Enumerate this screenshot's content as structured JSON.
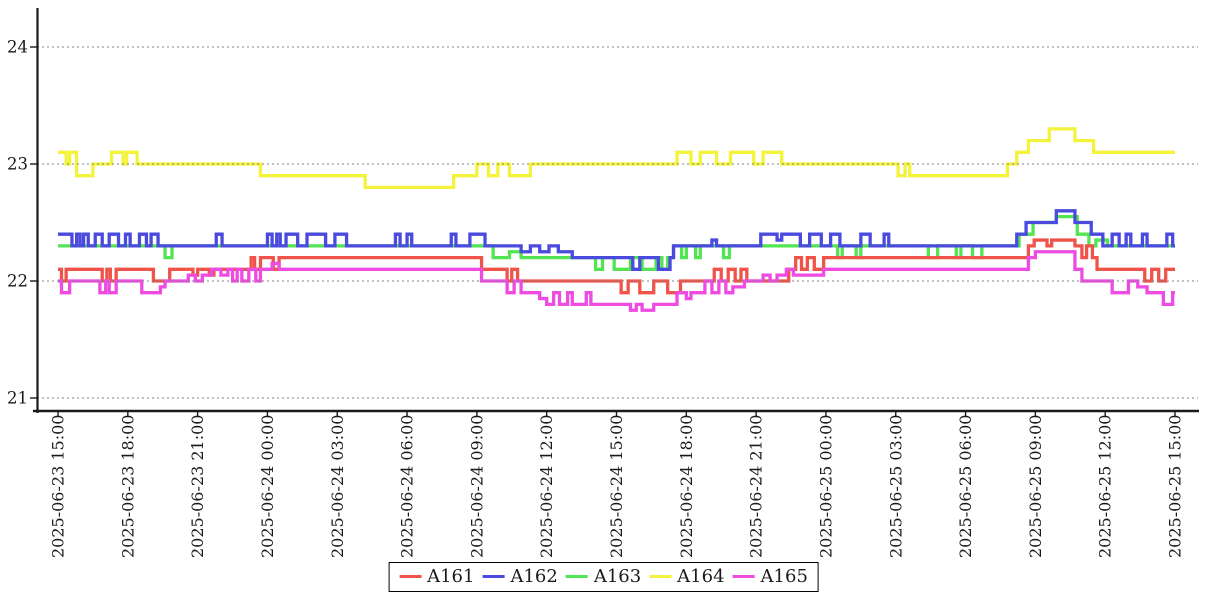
{
  "chart_data": {
    "type": "line",
    "title": "",
    "xlabel": "",
    "ylabel": "",
    "line_style": "step-after",
    "grid": "horizontal dotted",
    "legend_position": "bottom-center",
    "y_ticks": [
      21,
      22,
      23,
      24
    ],
    "ylim": [
      20.9,
      24.35
    ],
    "x_unit": "hours since 2025-06-23 15:00",
    "x_tick_interval_hours": 3,
    "x_range_hours": [
      0,
      48
    ],
    "x_ticks": [
      "2025-06-23 15:00",
      "2025-06-23 18:00",
      "2025-06-23 21:00",
      "2025-06-24 00:00",
      "2025-06-24 03:00",
      "2025-06-24 06:00",
      "2025-06-24 09:00",
      "2025-06-24 12:00",
      "2025-06-24 15:00",
      "2025-06-24 18:00",
      "2025-06-24 21:00",
      "2025-06-25 00:00",
      "2025-06-25 03:00",
      "2025-06-25 06:00",
      "2025-06-25 09:00",
      "2025-06-25 12:00",
      "2025-06-25 15:00"
    ],
    "draw_order": [
      "A164",
      "A163",
      "A161",
      "A162",
      "A165"
    ],
    "series": [
      {
        "name": "A161",
        "color": "#f0534a",
        "points": [
          [
            0,
            22.1
          ],
          [
            0.15,
            22.0
          ],
          [
            0.35,
            22.1
          ],
          [
            1.9,
            22.0
          ],
          [
            2.1,
            22.1
          ],
          [
            2.25,
            22.0
          ],
          [
            2.5,
            22.1
          ],
          [
            4.1,
            22.0
          ],
          [
            4.8,
            22.1
          ],
          [
            5.8,
            22.05
          ],
          [
            6.0,
            22.1
          ],
          [
            6.5,
            22.05
          ],
          [
            6.7,
            22.1
          ],
          [
            8.3,
            22.2
          ],
          [
            8.45,
            22.1
          ],
          [
            8.7,
            22.2
          ],
          [
            9.25,
            22.1
          ],
          [
            9.5,
            22.2
          ],
          [
            18.2,
            22.1
          ],
          [
            19.3,
            22.0
          ],
          [
            19.5,
            22.1
          ],
          [
            19.75,
            22.0
          ],
          [
            24.2,
            21.9
          ],
          [
            24.5,
            22.0
          ],
          [
            25.0,
            21.9
          ],
          [
            25.6,
            22.0
          ],
          [
            26.2,
            21.9
          ],
          [
            26.75,
            22.0
          ],
          [
            28.2,
            22.1
          ],
          [
            28.5,
            22.0
          ],
          [
            28.8,
            22.1
          ],
          [
            29.1,
            22.0
          ],
          [
            29.35,
            22.1
          ],
          [
            29.6,
            22.0
          ],
          [
            31.4,
            22.1
          ],
          [
            31.7,
            22.2
          ],
          [
            31.95,
            22.1
          ],
          [
            32.2,
            22.2
          ],
          [
            32.5,
            22.1
          ],
          [
            32.9,
            22.2
          ],
          [
            41.7,
            22.3
          ],
          [
            41.95,
            22.35
          ],
          [
            42.5,
            22.3
          ],
          [
            42.7,
            22.35
          ],
          [
            43.7,
            22.3
          ],
          [
            44.0,
            22.2
          ],
          [
            44.2,
            22.3
          ],
          [
            44.45,
            22.2
          ],
          [
            44.65,
            22.1
          ],
          [
            46.7,
            22.0
          ],
          [
            47.0,
            22.1
          ],
          [
            47.3,
            22.0
          ],
          [
            47.6,
            22.1
          ]
        ]
      },
      {
        "name": "A162",
        "color": "#4a4ade",
        "points": [
          [
            0,
            22.4
          ],
          [
            0.6,
            22.3
          ],
          [
            0.8,
            22.4
          ],
          [
            0.95,
            22.3
          ],
          [
            1.1,
            22.4
          ],
          [
            1.3,
            22.3
          ],
          [
            1.6,
            22.4
          ],
          [
            1.9,
            22.3
          ],
          [
            2.2,
            22.4
          ],
          [
            2.6,
            22.3
          ],
          [
            2.9,
            22.4
          ],
          [
            3.1,
            22.3
          ],
          [
            3.5,
            22.4
          ],
          [
            3.8,
            22.3
          ],
          [
            4.0,
            22.4
          ],
          [
            4.3,
            22.3
          ],
          [
            6.8,
            22.4
          ],
          [
            7.05,
            22.3
          ],
          [
            9.0,
            22.4
          ],
          [
            9.2,
            22.3
          ],
          [
            9.4,
            22.4
          ],
          [
            9.55,
            22.3
          ],
          [
            9.8,
            22.4
          ],
          [
            10.3,
            22.3
          ],
          [
            10.7,
            22.4
          ],
          [
            11.5,
            22.3
          ],
          [
            11.9,
            22.4
          ],
          [
            12.4,
            22.3
          ],
          [
            14.5,
            22.4
          ],
          [
            14.7,
            22.3
          ],
          [
            15.0,
            22.4
          ],
          [
            15.2,
            22.3
          ],
          [
            16.9,
            22.4
          ],
          [
            17.1,
            22.3
          ],
          [
            17.7,
            22.4
          ],
          [
            18.35,
            22.3
          ],
          [
            19.9,
            22.25
          ],
          [
            20.3,
            22.3
          ],
          [
            20.7,
            22.25
          ],
          [
            21.1,
            22.3
          ],
          [
            21.5,
            22.25
          ],
          [
            22.1,
            22.2
          ],
          [
            24.7,
            22.1
          ],
          [
            25.0,
            22.2
          ],
          [
            25.8,
            22.1
          ],
          [
            26.3,
            22.2
          ],
          [
            26.45,
            22.3
          ],
          [
            28.1,
            22.35
          ],
          [
            28.3,
            22.3
          ],
          [
            30.2,
            22.4
          ],
          [
            30.9,
            22.35
          ],
          [
            31.1,
            22.4
          ],
          [
            31.9,
            22.3
          ],
          [
            32.3,
            22.4
          ],
          [
            32.8,
            22.3
          ],
          [
            33.2,
            22.4
          ],
          [
            33.6,
            22.3
          ],
          [
            34.5,
            22.4
          ],
          [
            34.9,
            22.3
          ],
          [
            35.5,
            22.4
          ],
          [
            35.7,
            22.3
          ],
          [
            41.2,
            22.4
          ],
          [
            41.6,
            22.5
          ],
          [
            42.9,
            22.6
          ],
          [
            43.7,
            22.5
          ],
          [
            44.4,
            22.4
          ],
          [
            44.9,
            22.3
          ],
          [
            45.3,
            22.4
          ],
          [
            45.6,
            22.3
          ],
          [
            45.9,
            22.4
          ],
          [
            46.1,
            22.3
          ],
          [
            46.6,
            22.4
          ],
          [
            46.8,
            22.3
          ],
          [
            47.65,
            22.4
          ],
          [
            47.9,
            22.3
          ]
        ]
      },
      {
        "name": "A163",
        "color": "#52e452",
        "points": [
          [
            0,
            22.3
          ],
          [
            4.6,
            22.2
          ],
          [
            4.9,
            22.3
          ],
          [
            18.7,
            22.2
          ],
          [
            19.4,
            22.25
          ],
          [
            19.9,
            22.2
          ],
          [
            23.1,
            22.1
          ],
          [
            23.4,
            22.2
          ],
          [
            23.9,
            22.1
          ],
          [
            24.6,
            22.2
          ],
          [
            25.1,
            22.1
          ],
          [
            25.7,
            22.2
          ],
          [
            25.95,
            22.1
          ],
          [
            26.2,
            22.2
          ],
          [
            26.45,
            22.3
          ],
          [
            26.8,
            22.2
          ],
          [
            27.0,
            22.3
          ],
          [
            27.4,
            22.2
          ],
          [
            27.6,
            22.3
          ],
          [
            28.6,
            22.2
          ],
          [
            28.85,
            22.3
          ],
          [
            33.5,
            22.2
          ],
          [
            33.7,
            22.3
          ],
          [
            34.3,
            22.2
          ],
          [
            34.5,
            22.3
          ],
          [
            37.4,
            22.2
          ],
          [
            37.8,
            22.3
          ],
          [
            38.6,
            22.2
          ],
          [
            38.8,
            22.3
          ],
          [
            39.3,
            22.2
          ],
          [
            39.7,
            22.3
          ],
          [
            41.3,
            22.4
          ],
          [
            41.9,
            22.5
          ],
          [
            42.9,
            22.55
          ],
          [
            43.8,
            22.4
          ],
          [
            44.3,
            22.3
          ],
          [
            44.6,
            22.35
          ],
          [
            45.1,
            22.3
          ]
        ]
      },
      {
        "name": "A164",
        "color": "#f3f33c",
        "points": [
          [
            0,
            23.1
          ],
          [
            0.35,
            23.0
          ],
          [
            0.5,
            23.1
          ],
          [
            0.8,
            22.9
          ],
          [
            1.5,
            23.0
          ],
          [
            2.3,
            23.1
          ],
          [
            2.8,
            23.0
          ],
          [
            2.95,
            23.1
          ],
          [
            3.4,
            23.0
          ],
          [
            8.7,
            22.9
          ],
          [
            13.2,
            22.8
          ],
          [
            17.0,
            22.9
          ],
          [
            18.0,
            23.0
          ],
          [
            18.5,
            22.9
          ],
          [
            18.9,
            23.0
          ],
          [
            19.4,
            22.9
          ],
          [
            20.3,
            23.0
          ],
          [
            26.6,
            23.1
          ],
          [
            27.2,
            23.0
          ],
          [
            27.6,
            23.1
          ],
          [
            28.3,
            23.0
          ],
          [
            28.9,
            23.1
          ],
          [
            29.9,
            23.0
          ],
          [
            30.3,
            23.1
          ],
          [
            31.1,
            23.0
          ],
          [
            36.1,
            22.9
          ],
          [
            36.4,
            23.0
          ],
          [
            36.6,
            22.9
          ],
          [
            40.8,
            23.0
          ],
          [
            41.2,
            23.1
          ],
          [
            41.7,
            23.2
          ],
          [
            42.6,
            23.3
          ],
          [
            43.7,
            23.2
          ],
          [
            44.5,
            23.1
          ]
        ]
      },
      {
        "name": "A165",
        "color": "#ee4be2",
        "points": [
          [
            0,
            22.0
          ],
          [
            0.15,
            21.9
          ],
          [
            0.5,
            22.0
          ],
          [
            1.8,
            21.9
          ],
          [
            2.05,
            22.0
          ],
          [
            2.2,
            21.9
          ],
          [
            2.5,
            22.0
          ],
          [
            3.6,
            21.9
          ],
          [
            4.4,
            21.95
          ],
          [
            4.6,
            22.0
          ],
          [
            5.6,
            22.05
          ],
          [
            5.9,
            22.0
          ],
          [
            6.2,
            22.05
          ],
          [
            6.6,
            22.1
          ],
          [
            7.0,
            22.05
          ],
          [
            7.3,
            22.1
          ],
          [
            7.5,
            22.0
          ],
          [
            7.7,
            22.1
          ],
          [
            7.9,
            22.0
          ],
          [
            8.2,
            22.1
          ],
          [
            8.5,
            22.0
          ],
          [
            8.7,
            22.1
          ],
          [
            9.2,
            22.15
          ],
          [
            9.5,
            22.1
          ],
          [
            18.2,
            22.0
          ],
          [
            19.3,
            21.9
          ],
          [
            19.6,
            22.0
          ],
          [
            19.9,
            21.9
          ],
          [
            20.7,
            21.85
          ],
          [
            21.0,
            21.8
          ],
          [
            21.3,
            21.9
          ],
          [
            21.55,
            21.8
          ],
          [
            21.9,
            21.9
          ],
          [
            22.1,
            21.8
          ],
          [
            22.7,
            21.9
          ],
          [
            22.9,
            21.8
          ],
          [
            24.6,
            21.75
          ],
          [
            24.85,
            21.8
          ],
          [
            25.1,
            21.75
          ],
          [
            25.6,
            21.8
          ],
          [
            26.6,
            21.9
          ],
          [
            27.0,
            21.85
          ],
          [
            27.2,
            21.9
          ],
          [
            27.8,
            22.0
          ],
          [
            28.1,
            21.9
          ],
          [
            28.4,
            22.0
          ],
          [
            28.7,
            21.9
          ],
          [
            29.0,
            21.95
          ],
          [
            29.5,
            22.0
          ],
          [
            30.3,
            22.05
          ],
          [
            30.6,
            22.0
          ],
          [
            30.9,
            22.05
          ],
          [
            31.3,
            22.1
          ],
          [
            31.6,
            22.05
          ],
          [
            32.9,
            22.1
          ],
          [
            41.7,
            22.2
          ],
          [
            42.0,
            22.25
          ],
          [
            43.7,
            22.1
          ],
          [
            44.0,
            22.0
          ],
          [
            45.3,
            21.9
          ],
          [
            46.0,
            22.0
          ],
          [
            46.4,
            21.95
          ],
          [
            46.8,
            21.9
          ],
          [
            47.5,
            21.8
          ],
          [
            47.9,
            21.9
          ]
        ]
      }
    ],
    "style": {
      "background": "#ffffff",
      "axis_color": "#1a1a1a",
      "grid_color": "#808080",
      "tick_label_color": "#1a1a1a",
      "legend_text_color": "#1a1a1a",
      "legend_border_color": "#000000"
    }
  }
}
